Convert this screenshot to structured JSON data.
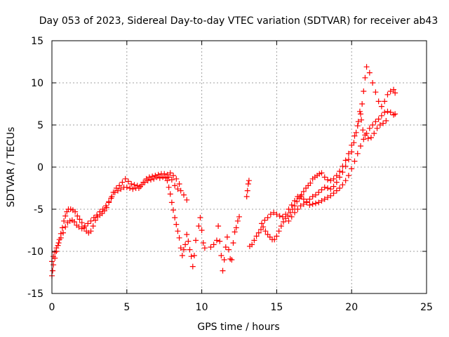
{
  "chart_data": {
    "type": "scatter",
    "title": "Day 053 of 2023, Sidereal Day-to-day VTEC variation (SDTVAR) for receiver ab43",
    "xlabel": "GPS time / hours",
    "ylabel": "SDTVAR / TECUs",
    "xlim": [
      0,
      25
    ],
    "ylim": [
      -15,
      15
    ],
    "xticks": [
      "0",
      "5",
      "10",
      "15",
      "20",
      "25"
    ],
    "yticks": [
      "-15",
      "-10",
      "-5",
      "0",
      "5",
      "10",
      "15"
    ],
    "grid": true,
    "marker": "+",
    "color": "#ff0000",
    "series": [
      {
        "name": "",
        "points": [
          [
            0.0,
            -12.9
          ],
          [
            0.05,
            -12.3
          ],
          [
            0.1,
            -11.6
          ],
          [
            0.2,
            -10.8
          ],
          [
            0.3,
            -10.0
          ],
          [
            0.4,
            -9.3
          ],
          [
            0.5,
            -8.6
          ],
          [
            0.6,
            -7.9
          ],
          [
            0.7,
            -7.2
          ],
          [
            0.8,
            -6.4
          ],
          [
            0.9,
            -5.8
          ],
          [
            1.0,
            -5.3
          ],
          [
            1.1,
            -5.0
          ],
          [
            1.25,
            -5.0
          ],
          [
            1.4,
            -5.1
          ],
          [
            1.55,
            -5.3
          ],
          [
            1.7,
            -5.8
          ],
          [
            1.85,
            -6.2
          ],
          [
            2.0,
            -6.6
          ],
          [
            2.15,
            -7.2
          ],
          [
            2.3,
            -7.6
          ],
          [
            2.45,
            -7.8
          ],
          [
            2.6,
            -7.6
          ],
          [
            2.75,
            -7.0
          ],
          [
            2.9,
            -6.3
          ],
          [
            3.05,
            -5.9
          ],
          [
            3.2,
            -5.7
          ],
          [
            3.35,
            -5.5
          ],
          [
            3.5,
            -5.2
          ],
          [
            3.65,
            -4.8
          ],
          [
            3.8,
            -4.2
          ],
          [
            3.95,
            -3.7
          ],
          [
            4.1,
            -3.0
          ],
          [
            4.3,
            -2.5
          ],
          [
            4.5,
            -2.2
          ],
          [
            4.7,
            -1.8
          ],
          [
            4.9,
            -1.4
          ],
          [
            5.1,
            -1.7
          ],
          [
            5.3,
            -2.0
          ],
          [
            5.5,
            -2.1
          ],
          [
            5.7,
            -2.2
          ],
          [
            5.9,
            -2.3
          ],
          [
            6.1,
            -1.8
          ],
          [
            6.3,
            -1.4
          ],
          [
            6.5,
            -1.2
          ],
          [
            6.7,
            -1.1
          ],
          [
            6.9,
            -1.0
          ],
          [
            7.1,
            -0.9
          ],
          [
            7.3,
            -0.8
          ],
          [
            7.5,
            -0.8
          ],
          [
            7.7,
            -0.9
          ],
          [
            7.9,
            -0.7
          ],
          [
            8.1,
            -1.0
          ],
          [
            8.3,
            -1.4
          ],
          [
            8.5,
            -2.0
          ]
        ]
      },
      {
        "name": "",
        "points": [
          [
            0.0,
            -11.2
          ],
          [
            0.1,
            -10.6
          ],
          [
            0.2,
            -10.1
          ],
          [
            0.3,
            -9.6
          ],
          [
            0.45,
            -9.0
          ],
          [
            0.6,
            -8.4
          ],
          [
            0.75,
            -7.8
          ],
          [
            0.9,
            -7.1
          ],
          [
            1.05,
            -6.6
          ],
          [
            1.2,
            -6.4
          ],
          [
            1.35,
            -6.3
          ],
          [
            1.5,
            -6.5
          ],
          [
            1.65,
            -6.9
          ],
          [
            1.8,
            -7.1
          ],
          [
            2.0,
            -7.3
          ],
          [
            2.2,
            -7.0
          ],
          [
            2.4,
            -6.7
          ],
          [
            2.6,
            -6.4
          ],
          [
            2.8,
            -6.0
          ],
          [
            3.0,
            -5.7
          ],
          [
            3.2,
            -5.3
          ],
          [
            3.4,
            -5.0
          ],
          [
            3.6,
            -4.6
          ],
          [
            3.8,
            -4.1
          ],
          [
            4.0,
            -3.5
          ],
          [
            4.2,
            -3.0
          ],
          [
            4.4,
            -2.8
          ],
          [
            4.6,
            -2.6
          ],
          [
            4.8,
            -2.4
          ],
          [
            5.0,
            -2.4
          ],
          [
            5.2,
            -2.5
          ],
          [
            5.4,
            -2.6
          ],
          [
            5.6,
            -2.5
          ],
          [
            5.8,
            -2.5
          ],
          [
            6.0,
            -2.1
          ],
          [
            6.2,
            -1.8
          ],
          [
            6.4,
            -1.6
          ],
          [
            6.6,
            -1.5
          ],
          [
            6.8,
            -1.4
          ],
          [
            7.0,
            -1.2
          ],
          [
            7.2,
            -1.3
          ],
          [
            7.4,
            -1.2
          ],
          [
            7.6,
            -1.3
          ],
          [
            7.8,
            -1.2
          ],
          [
            8.0,
            -1.5
          ],
          [
            8.2,
            -2.2
          ],
          [
            8.4,
            -2.6
          ],
          [
            8.6,
            -2.8
          ],
          [
            8.8,
            -3.3
          ],
          [
            9.0,
            -3.9
          ]
        ]
      },
      {
        "name": "",
        "points": [
          [
            7.7,
            -1.6
          ],
          [
            7.8,
            -2.4
          ],
          [
            7.9,
            -3.2
          ],
          [
            8.0,
            -4.2
          ],
          [
            8.1,
            -5.1
          ],
          [
            8.2,
            -6.0
          ],
          [
            8.3,
            -6.8
          ],
          [
            8.4,
            -7.6
          ],
          [
            8.5,
            -8.4
          ],
          [
            8.6,
            -9.6
          ],
          [
            8.7,
            -10.5
          ],
          [
            8.8,
            -9.8
          ],
          [
            8.9,
            -9.2
          ],
          [
            9.0,
            -8.0
          ],
          [
            9.1,
            -8.8
          ],
          [
            9.2,
            -9.8
          ],
          [
            9.3,
            -10.6
          ],
          [
            9.4,
            -11.8
          ],
          [
            9.5,
            -10.5
          ],
          [
            9.6,
            -8.7
          ],
          [
            9.8,
            -7.0
          ],
          [
            9.9,
            -6.0
          ],
          [
            10.0,
            -7.5
          ],
          [
            10.1,
            -9.0
          ],
          [
            10.2,
            -9.6
          ],
          [
            10.6,
            -9.5
          ],
          [
            10.8,
            -9.2
          ],
          [
            11.0,
            -8.7
          ],
          [
            11.1,
            -7.0
          ],
          [
            11.2,
            -8.8
          ],
          [
            11.3,
            -10.5
          ],
          [
            11.4,
            -12.3
          ],
          [
            11.5,
            -11.0
          ],
          [
            11.6,
            -9.5
          ],
          [
            11.7,
            -8.3
          ],
          [
            11.8,
            -9.8
          ],
          [
            11.9,
            -10.9
          ],
          [
            12.0,
            -11.0
          ],
          [
            12.1,
            -9.0
          ],
          [
            12.2,
            -7.7
          ],
          [
            12.3,
            -7.2
          ],
          [
            12.4,
            -6.4
          ],
          [
            12.5,
            -5.9
          ]
        ]
      },
      {
        "name": "",
        "points": [
          [
            13.0,
            -3.5
          ],
          [
            13.05,
            -2.8
          ],
          [
            13.1,
            -2.0
          ],
          [
            13.15,
            -1.6
          ],
          [
            13.2,
            -9.4
          ],
          [
            13.35,
            -9.2
          ],
          [
            13.5,
            -8.7
          ],
          [
            13.65,
            -8.2
          ],
          [
            13.8,
            -7.8
          ],
          [
            13.95,
            -7.4
          ],
          [
            14.1,
            -7.1
          ],
          [
            14.25,
            -7.6
          ],
          [
            14.4,
            -8.0
          ],
          [
            14.55,
            -8.3
          ],
          [
            14.7,
            -8.6
          ],
          [
            14.85,
            -8.6
          ],
          [
            15.0,
            -8.2
          ],
          [
            15.15,
            -7.6
          ],
          [
            15.3,
            -7.0
          ],
          [
            15.45,
            -6.5
          ],
          [
            15.6,
            -6.1
          ],
          [
            15.75,
            -5.8
          ],
          [
            15.9,
            -5.4
          ],
          [
            16.05,
            -5.0
          ],
          [
            16.2,
            -4.6
          ],
          [
            16.35,
            -4.1
          ],
          [
            16.5,
            -3.7
          ],
          [
            16.65,
            -3.3
          ],
          [
            16.8,
            -2.9
          ],
          [
            16.95,
            -2.5
          ],
          [
            17.1,
            -2.2
          ],
          [
            17.25,
            -1.9
          ],
          [
            17.4,
            -1.4
          ],
          [
            17.55,
            -1.2
          ],
          [
            17.7,
            -1.0
          ],
          [
            17.85,
            -0.8
          ],
          [
            18.0,
            -0.7
          ],
          [
            18.2,
            -1.2
          ],
          [
            18.4,
            -1.5
          ],
          [
            18.6,
            -1.6
          ],
          [
            18.8,
            -1.4
          ],
          [
            19.0,
            -1.0
          ],
          [
            19.2,
            -0.5
          ],
          [
            19.4,
            0.1
          ],
          [
            19.6,
            0.8
          ],
          [
            19.8,
            1.6
          ],
          [
            20.0,
            2.6
          ],
          [
            20.2,
            3.7
          ],
          [
            20.4,
            4.9
          ],
          [
            20.6,
            6.3
          ],
          [
            20.7,
            7.5
          ],
          [
            20.8,
            9.0
          ],
          [
            20.9,
            10.6
          ],
          [
            21.0,
            11.9
          ],
          [
            21.2,
            11.2
          ],
          [
            21.4,
            10.0
          ],
          [
            21.6,
            8.9
          ],
          [
            21.8,
            7.8
          ],
          [
            22.0,
            7.2
          ],
          [
            22.2,
            7.8
          ],
          [
            22.4,
            8.6
          ],
          [
            22.6,
            9.0
          ],
          [
            22.8,
            9.2
          ],
          [
            22.9,
            8.8
          ]
        ]
      },
      {
        "name": "",
        "points": [
          [
            14.0,
            -6.7
          ],
          [
            14.2,
            -6.3
          ],
          [
            14.4,
            -6.0
          ],
          [
            14.6,
            -5.6
          ],
          [
            14.8,
            -5.4
          ],
          [
            15.0,
            -5.6
          ],
          [
            15.2,
            -5.8
          ],
          [
            15.4,
            -5.9
          ],
          [
            15.6,
            -5.6
          ],
          [
            15.8,
            -5.0
          ],
          [
            16.0,
            -4.5
          ],
          [
            16.2,
            -4.0
          ],
          [
            16.4,
            -3.5
          ],
          [
            16.6,
            -3.5
          ],
          [
            16.8,
            -3.8
          ],
          [
            17.0,
            -4.2
          ],
          [
            17.2,
            -4.5
          ],
          [
            17.4,
            -4.4
          ],
          [
            17.6,
            -4.3
          ],
          [
            17.8,
            -4.2
          ],
          [
            18.0,
            -4.0
          ],
          [
            18.2,
            -3.8
          ],
          [
            18.4,
            -3.6
          ],
          [
            18.6,
            -3.4
          ],
          [
            18.8,
            -3.1
          ],
          [
            19.0,
            -2.8
          ],
          [
            19.2,
            -2.5
          ],
          [
            19.4,
            -2.1
          ],
          [
            19.6,
            -1.6
          ],
          [
            19.8,
            -1.0
          ],
          [
            20.0,
            -0.2
          ],
          [
            20.2,
            0.7
          ],
          [
            20.4,
            1.6
          ],
          [
            20.6,
            2.5
          ],
          [
            20.8,
            3.3
          ],
          [
            21.0,
            4.0
          ],
          [
            21.2,
            4.6
          ],
          [
            21.4,
            5.0
          ],
          [
            21.6,
            5.4
          ],
          [
            21.8,
            5.7
          ],
          [
            22.0,
            6.1
          ],
          [
            22.2,
            6.5
          ],
          [
            22.4,
            6.6
          ],
          [
            22.6,
            6.5
          ],
          [
            22.8,
            6.2
          ],
          [
            22.9,
            6.3
          ]
        ]
      },
      {
        "name": "",
        "points": [
          [
            15.8,
            -6.4
          ],
          [
            16.0,
            -5.9
          ],
          [
            16.2,
            -5.4
          ],
          [
            16.4,
            -5.0
          ],
          [
            16.6,
            -4.6
          ],
          [
            16.8,
            -4.4
          ],
          [
            17.0,
            -4.1
          ],
          [
            17.2,
            -3.8
          ],
          [
            17.4,
            -3.5
          ],
          [
            17.6,
            -3.3
          ],
          [
            17.8,
            -3.0
          ],
          [
            18.0,
            -2.7
          ],
          [
            18.2,
            -2.4
          ],
          [
            18.4,
            -2.5
          ],
          [
            18.6,
            -2.6
          ],
          [
            18.8,
            -2.3
          ],
          [
            19.0,
            -1.8
          ],
          [
            19.2,
            -1.2
          ],
          [
            19.4,
            -0.6
          ],
          [
            19.6,
            0.1
          ],
          [
            19.8,
            0.9
          ],
          [
            20.0,
            1.8
          ],
          [
            20.15,
            2.9
          ],
          [
            20.3,
            4.1
          ],
          [
            20.45,
            5.4
          ],
          [
            20.55,
            6.6
          ],
          [
            20.65,
            5.6
          ],
          [
            20.75,
            4.4
          ],
          [
            20.9,
            3.8
          ],
          [
            21.1,
            3.4
          ],
          [
            21.3,
            3.5
          ],
          [
            21.5,
            4.0
          ],
          [
            21.7,
            4.6
          ],
          [
            21.9,
            5.0
          ],
          [
            22.1,
            5.2
          ],
          [
            22.3,
            5.5
          ]
        ]
      }
    ]
  }
}
